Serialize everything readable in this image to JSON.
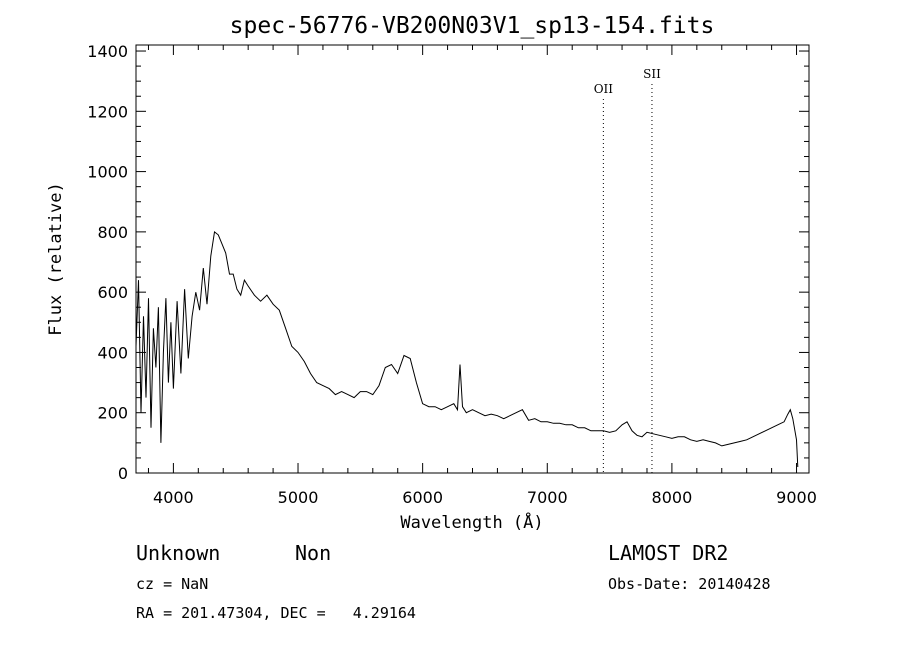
{
  "chart_data": {
    "type": "line",
    "title": "spec-56776-VB200N03V1_sp13-154.fits",
    "xlabel": "Wavelength (Å)",
    "ylabel": "Flux (relative)",
    "xlim": [
      3700,
      9100
    ],
    "ylim": [
      0,
      1420
    ],
    "xticks": [
      4000,
      5000,
      6000,
      7000,
      8000,
      9000
    ],
    "yticks": [
      0,
      200,
      400,
      600,
      800,
      1000,
      1200,
      1400
    ],
    "grid": false,
    "series": [
      {
        "x": [
          3700,
          3720,
          3740,
          3760,
          3780,
          3800,
          3820,
          3840,
          3860,
          3880,
          3900,
          3920,
          3940,
          3960,
          3980,
          4000,
          4030,
          4060,
          4090,
          4120,
          4150,
          4180,
          4210,
          4240,
          4270,
          4300,
          4330,
          4360,
          4390,
          4420,
          4450,
          4480,
          4510,
          4540,
          4570,
          4600,
          4650,
          4700,
          4750,
          4800,
          4850,
          4900,
          4950,
          5000,
          5050,
          5100,
          5150,
          5200,
          5250,
          5300,
          5350,
          5400,
          5450,
          5500,
          5550,
          5600,
          5650,
          5700,
          5750,
          5800,
          5850,
          5900,
          5950,
          6000,
          6050,
          6100,
          6150,
          6200,
          6250,
          6280,
          6300,
          6320,
          6350,
          6400,
          6450,
          6500,
          6550,
          6600,
          6650,
          6700,
          6750,
          6800,
          6850,
          6900,
          6950,
          7000,
          7050,
          7100,
          7150,
          7200,
          7250,
          7300,
          7350,
          7400,
          7450,
          7500,
          7550,
          7600,
          7640,
          7680,
          7720,
          7760,
          7800,
          7850,
          7900,
          7950,
          8000,
          8050,
          8100,
          8150,
          8200,
          8250,
          8300,
          8350,
          8400,
          8450,
          8500,
          8550,
          8600,
          8650,
          8700,
          8750,
          8800,
          8850,
          8900,
          8930,
          8950,
          8970,
          9000,
          9010
        ],
        "y": [
          420,
          640,
          200,
          520,
          250,
          580,
          150,
          480,
          350,
          550,
          100,
          400,
          580,
          300,
          500,
          280,
          570,
          330,
          610,
          380,
          520,
          600,
          540,
          680,
          560,
          720,
          800,
          790,
          760,
          730,
          660,
          660,
          610,
          590,
          640,
          620,
          590,
          570,
          590,
          560,
          540,
          480,
          420,
          400,
          370,
          330,
          300,
          290,
          280,
          260,
          270,
          260,
          250,
          270,
          270,
          260,
          290,
          350,
          360,
          330,
          390,
          380,
          300,
          230,
          220,
          220,
          210,
          220,
          230,
          210,
          360,
          220,
          200,
          210,
          200,
          190,
          195,
          190,
          180,
          190,
          200,
          210,
          175,
          180,
          170,
          170,
          165,
          165,
          160,
          160,
          150,
          150,
          140,
          140,
          140,
          135,
          140,
          160,
          170,
          140,
          125,
          120,
          135,
          130,
          125,
          120,
          115,
          120,
          120,
          110,
          105,
          110,
          105,
          100,
          90,
          95,
          100,
          105,
          110,
          120,
          130,
          140,
          150,
          160,
          170,
          195,
          210,
          180,
          110,
          20
        ]
      }
    ],
    "annotations": [
      {
        "label": "OII",
        "x": 7450
      },
      {
        "label": "SII",
        "x": 7840
      }
    ]
  },
  "info": {
    "class": "Unknown",
    "subclass": "Non",
    "cz": "cz = NaN",
    "coords": "RA = 201.47304, DEC =   4.29164",
    "survey": "LAMOST DR2",
    "obs_date": "Obs-Date: 20140428"
  }
}
